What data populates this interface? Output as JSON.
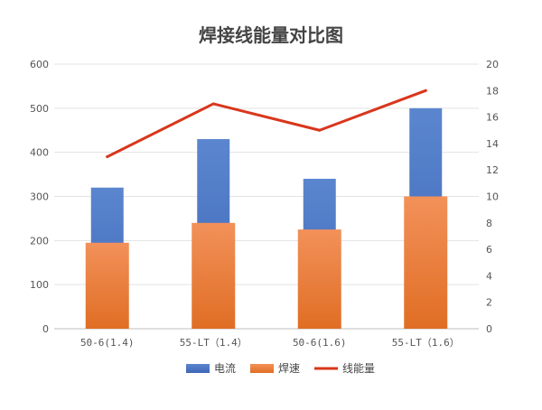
{
  "chart_data": {
    "type": "bar",
    "title": "焊接线能量对比图",
    "categories": [
      "50-6(1.4)",
      "55-LT（1.4）",
      "50-6(1.6)",
      "55-LT（1.6）"
    ],
    "series": [
      {
        "name": "电流",
        "kind": "bar",
        "axis": "left",
        "values": [
          320,
          430,
          340,
          500
        ],
        "color": "#4472C4"
      },
      {
        "name": "焊速",
        "kind": "bar",
        "axis": "left",
        "values": [
          195,
          240,
          225,
          300
        ],
        "color": "#ED7D31"
      },
      {
        "name": "线能量",
        "kind": "line",
        "axis": "right",
        "values": [
          13,
          17,
          15,
          18
        ],
        "color": "#D9361C"
      }
    ],
    "y_left": {
      "min": 0,
      "max": 600,
      "step": 100,
      "ticks": [
        "0",
        "100",
        "200",
        "300",
        "400",
        "500",
        "600"
      ]
    },
    "y_right": {
      "min": 0,
      "max": 20,
      "step": 2,
      "ticks": [
        "0",
        "2",
        "4",
        "6",
        "8",
        "10",
        "12",
        "14",
        "16",
        "18",
        "20"
      ]
    },
    "grid": true,
    "legend_position": "bottom",
    "legend": [
      "电流",
      "焊速",
      "线能量"
    ]
  }
}
